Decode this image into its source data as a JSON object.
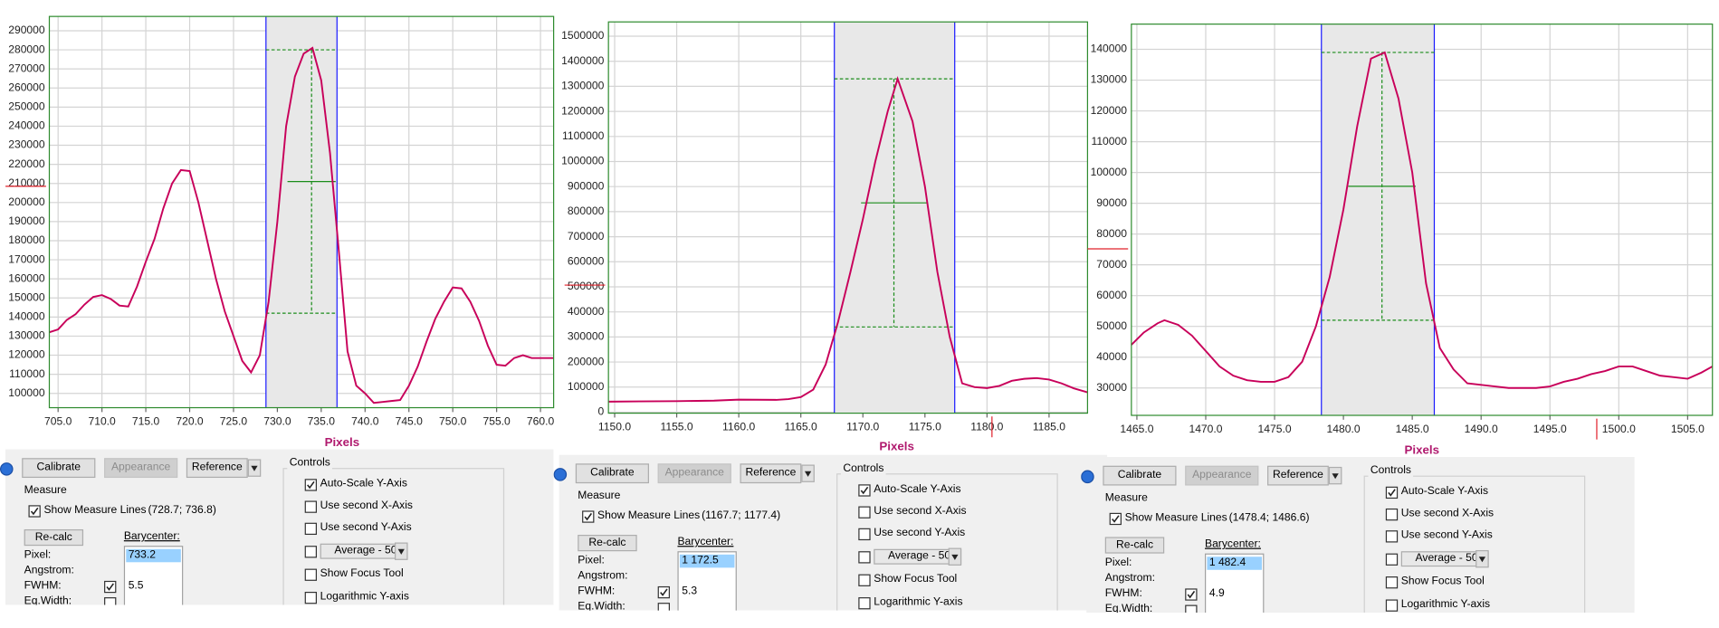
{
  "chart_data": [
    {
      "type": "line",
      "x_label": "Pixels",
      "x": [
        704,
        705,
        706,
        707,
        708,
        709,
        710,
        711,
        712,
        713,
        714,
        715,
        716,
        717,
        718,
        719,
        720,
        721,
        722,
        723,
        724,
        725,
        726,
        727,
        728,
        729,
        730,
        731,
        732,
        733,
        734,
        735,
        736,
        737,
        738,
        739,
        740,
        741,
        742,
        743,
        744,
        745,
        746,
        747,
        748,
        749,
        750,
        751,
        752,
        753,
        754,
        755,
        756,
        757,
        758,
        759,
        760,
        761.5
      ],
      "series": [
        {
          "color": "#c8005a",
          "values": [
            132000,
            133500,
            138500,
            141500,
            146500,
            150500,
            151500,
            149500,
            146000,
            145500,
            156000,
            169000,
            181000,
            197000,
            210000,
            217000,
            216500,
            200000,
            180000,
            160000,
            143000,
            130000,
            117000,
            111000,
            120000,
            148000,
            190000,
            240000,
            266000,
            278000,
            281000,
            264000,
            226000,
            175000,
            122000,
            104000,
            100000,
            95000,
            95500,
            96000,
            96500,
            104000,
            114000,
            127000,
            139000,
            148000,
            155500,
            155000,
            148000,
            138000,
            125000,
            115000,
            114500,
            118500,
            120000,
            118500,
            118500,
            118500
          ]
        }
      ],
      "xlim": [
        704,
        761.5
      ],
      "ylim": [
        92500,
        297500
      ],
      "xticks": [
        {
          "value": 705,
          "label": "705.0"
        },
        {
          "value": 710,
          "label": "710.0"
        },
        {
          "value": 715,
          "label": "715.0"
        },
        {
          "value": 720,
          "label": "720.0"
        },
        {
          "value": 725,
          "label": "725.0"
        },
        {
          "value": 730,
          "label": "730.0"
        },
        {
          "value": 735,
          "label": "735.0"
        },
        {
          "value": 740,
          "label": "740.0"
        },
        {
          "value": 745,
          "label": "745.0"
        },
        {
          "value": 750,
          "label": "750.0"
        },
        {
          "value": 755,
          "label": "755.0"
        },
        {
          "value": 760,
          "label": "760.0"
        }
      ],
      "yticks": [
        100000,
        110000,
        120000,
        130000,
        140000,
        150000,
        160000,
        170000,
        180000,
        190000,
        200000,
        210000,
        220000,
        230000,
        240000,
        250000,
        260000,
        270000,
        280000,
        290000
      ],
      "grid": true,
      "measure": {
        "range": [
          728.7,
          736.8
        ],
        "levels": [
          280000,
          211000,
          142000
        ],
        "center": 733.9,
        "fwhm": 5.5
      },
      "markers": {
        "y": 208500
      }
    },
    {
      "type": "line",
      "x_label": "Pixels",
      "x": [
        1149.5,
        1152,
        1155,
        1158,
        1160,
        1163,
        1164,
        1165,
        1166,
        1167,
        1168,
        1169,
        1170,
        1171,
        1172,
        1172.8,
        1174,
        1175,
        1176,
        1177,
        1178,
        1179,
        1180,
        1181,
        1182,
        1183,
        1184,
        1185,
        1186,
        1187,
        1188.1
      ],
      "series": [
        {
          "color": "#c8005a",
          "values": [
            42000,
            43000,
            44000,
            46000,
            50000,
            49000,
            52000,
            60000,
            90000,
            190000,
            360000,
            560000,
            770000,
            1000000,
            1200000,
            1330000,
            1160000,
            900000,
            560000,
            300000,
            115000,
            100000,
            96000,
            105000,
            125000,
            133000,
            136000,
            130000,
            115000,
            95000,
            79000
          ]
        }
      ],
      "xlim": [
        1149.5,
        1188.1
      ],
      "ylim": [
        -4000,
        1557000
      ],
      "xticks": [
        {
          "value": 1150,
          "label": "1150.0"
        },
        {
          "value": 1155,
          "label": "1155.0"
        },
        {
          "value": 1160,
          "label": "1160.0"
        },
        {
          "value": 1165,
          "label": "1165.0"
        },
        {
          "value": 1170,
          "label": "1170.0"
        },
        {
          "value": 1175,
          "label": "1175.0"
        },
        {
          "value": 1180,
          "label": "1180.0"
        },
        {
          "value": 1185,
          "label": "1185.0"
        }
      ],
      "yticks": [
        0,
        100000,
        200000,
        300000,
        400000,
        500000,
        600000,
        700000,
        800000,
        900000,
        1000000,
        1100000,
        1200000,
        1300000,
        1400000,
        1500000
      ],
      "grid": true,
      "measure": {
        "range": [
          1167.7,
          1177.4
        ],
        "levels": [
          1330000,
          835000,
          340000
        ],
        "center": 1172.5,
        "fwhm": 5.3
      },
      "markers": {
        "y": 507000,
        "x": 1180.4
      }
    },
    {
      "type": "line",
      "x_label": "Pixels",
      "x": [
        1464.6,
        1465.5,
        1466.5,
        1467,
        1468,
        1469,
        1470,
        1471,
        1472,
        1473,
        1474,
        1475,
        1476,
        1477,
        1478,
        1479,
        1480,
        1481,
        1482,
        1483,
        1484,
        1485,
        1486,
        1487,
        1488,
        1489,
        1490,
        1491,
        1492,
        1493,
        1494,
        1495,
        1496,
        1497,
        1498,
        1499,
        1500,
        1501,
        1502,
        1503,
        1504,
        1505,
        1506,
        1506.8
      ],
      "series": [
        {
          "color": "#c8005a",
          "values": [
            44000,
            48000,
            51000,
            52000,
            50500,
            47000,
            42000,
            37000,
            34000,
            32500,
            32000,
            32000,
            33500,
            38500,
            50000,
            66000,
            88000,
            115000,
            137000,
            139000,
            124000,
            100000,
            64000,
            43000,
            36000,
            31500,
            31000,
            30500,
            30000,
            30000,
            30000,
            30500,
            32000,
            33000,
            34500,
            35500,
            37000,
            37000,
            35500,
            34000,
            33500,
            33000,
            35000,
            37000
          ]
        }
      ],
      "xlim": [
        1464.6,
        1506.8
      ],
      "ylim": [
        21100,
        148200
      ],
      "xticks": [
        {
          "value": 1465,
          "label": "1465.0"
        },
        {
          "value": 1470,
          "label": "1470.0"
        },
        {
          "value": 1475,
          "label": "1475.0"
        },
        {
          "value": 1480,
          "label": "1480.0"
        },
        {
          "value": 1485,
          "label": "1485.0"
        },
        {
          "value": 1490,
          "label": "1490.0"
        },
        {
          "value": 1495,
          "label": "1495.0"
        },
        {
          "value": 1500,
          "label": "1500.0"
        },
        {
          "value": 1505,
          "label": "1505.0"
        }
      ],
      "yticks": [
        30000,
        40000,
        50000,
        60000,
        70000,
        80000,
        90000,
        100000,
        110000,
        120000,
        130000,
        140000
      ],
      "grid": true,
      "measure": {
        "range": [
          1478.4,
          1486.6
        ],
        "levels": [
          139000,
          95500,
          52000
        ],
        "center": 1482.8,
        "fwhm": 4.9
      },
      "markers": {
        "y": 75200,
        "x": 1498.4
      }
    }
  ],
  "panels": [
    {
      "buttons": [
        {
          "label": "Calibrate",
          "enabled": true
        },
        {
          "label": "Appearance",
          "enabled": false
        },
        {
          "label": "Reference",
          "enabled": true
        }
      ],
      "measure": {
        "title": "Measure",
        "show_lines": "Show Measure Lines",
        "show_lines_checked": true,
        "range": "(728.7; 736.8)",
        "recalc": "Re-calc",
        "barycenter": "Barycenter:",
        "pixel_label": "Pixel:",
        "pixel": "733.2",
        "angstrom_label": "Angstrom:",
        "fwhm_label": "FWHM:",
        "fwhm_checked": true,
        "eqwidth_label": "Eq.Width:",
        "eqwidth_checked": false
      },
      "controls": {
        "title": "Controls",
        "items": [
          {
            "label": "Auto-Scale Y-Axis",
            "checked": true
          },
          {
            "label": "Use second X-Axis",
            "checked": false
          },
          {
            "label": "Use second Y-Axis",
            "checked": false
          },
          {
            "label": "Average - 50",
            "checked": false
          },
          {
            "label": "Show Focus Tool",
            "checked": false
          },
          {
            "label": "Logarithmic Y-axis",
            "checked": false
          }
        ]
      }
    },
    {
      "buttons": [
        {
          "label": "Calibrate",
          "enabled": true
        },
        {
          "label": "Appearance",
          "enabled": false
        },
        {
          "label": "Reference",
          "enabled": true
        }
      ],
      "measure": {
        "title": "Measure",
        "show_lines": "Show Measure Lines",
        "show_lines_checked": true,
        "range": "(1167.7; 1177.4)",
        "recalc": "Re-calc",
        "barycenter": "Barycenter:",
        "pixel_label": "Pixel:",
        "pixel": "1 172.5",
        "angstrom_label": "Angstrom:",
        "fwhm_label": "FWHM:",
        "fwhm_checked": true,
        "eqwidth_label": "Eq.Width:",
        "eqwidth_checked": false
      },
      "controls": {
        "title": "Controls",
        "items": [
          {
            "label": "Auto-Scale Y-Axis",
            "checked": true
          },
          {
            "label": "Use second X-Axis",
            "checked": false
          },
          {
            "label": "Use second Y-Axis",
            "checked": false
          },
          {
            "label": "Average - 50",
            "checked": false
          },
          {
            "label": "Show Focus Tool",
            "checked": false
          },
          {
            "label": "Logarithmic Y-axis",
            "checked": false
          }
        ]
      }
    },
    {
      "buttons": [
        {
          "label": "Calibrate",
          "enabled": true
        },
        {
          "label": "Appearance",
          "enabled": false
        },
        {
          "label": "Reference",
          "enabled": true
        }
      ],
      "measure": {
        "title": "Measure",
        "show_lines": "Show Measure Lines",
        "show_lines_checked": true,
        "range": "(1478.4; 1486.6)",
        "recalc": "Re-calc",
        "barycenter": "Barycenter:",
        "pixel_label": "Pixel:",
        "pixel": "1 482.4",
        "angstrom_label": "Angstrom:",
        "fwhm_label": "FWHM:",
        "fwhm_checked": true,
        "eqwidth_label": "Eq.Width:",
        "eqwidth_checked": false
      },
      "controls": {
        "title": "Controls",
        "items": [
          {
            "label": "Auto-Scale Y-Axis",
            "checked": true
          },
          {
            "label": "Use second X-Axis",
            "checked": false
          },
          {
            "label": "Use second Y-Axis",
            "checked": false
          },
          {
            "label": "Average - 50",
            "checked": false
          },
          {
            "label": "Show Focus Tool",
            "checked": false
          },
          {
            "label": "Logarithmic Y-axis",
            "checked": false
          }
        ]
      }
    }
  ]
}
